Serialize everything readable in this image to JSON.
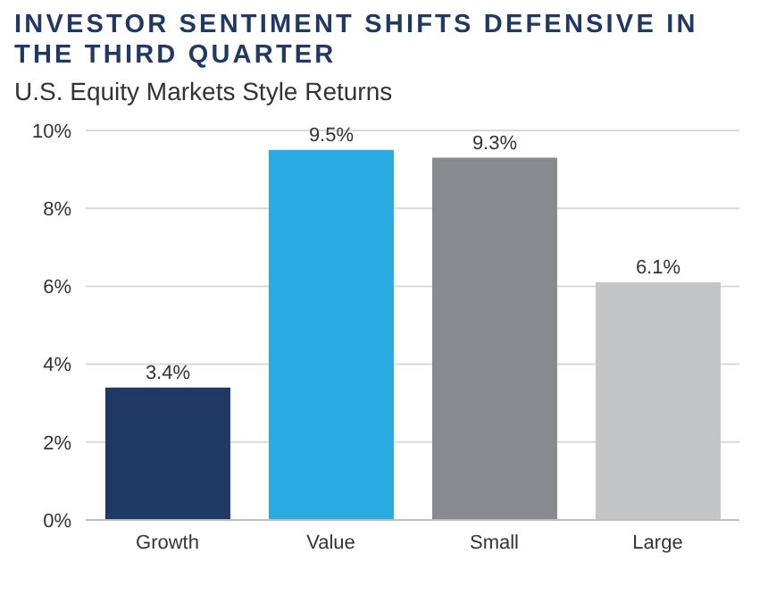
{
  "chart_data": {
    "type": "bar",
    "title": "INVESTOR SENTIMENT SHIFTS DEFENSIVE IN THE THIRD QUARTER",
    "subtitle": "U.S. Equity Markets Style Returns",
    "categories": [
      "Growth",
      "Value",
      "Small",
      "Large"
    ],
    "values": [
      3.4,
      9.5,
      9.3,
      6.1
    ],
    "colors": [
      "#1f3864",
      "#29abe2",
      "#898a8f",
      "#c4c5c7"
    ],
    "value_labels": [
      "3.4%",
      "9.5%",
      "9.3%",
      "6.1%"
    ],
    "ylim": [
      0,
      10
    ],
    "yticks": [
      {
        "value": 0,
        "label": "0%"
      },
      {
        "value": 2,
        "label": "2%"
      },
      {
        "value": 4,
        "label": "4%"
      },
      {
        "value": 6,
        "label": "6%"
      },
      {
        "value": 8,
        "label": "8%"
      },
      {
        "value": 10,
        "label": "10%"
      }
    ],
    "grid": "y"
  }
}
